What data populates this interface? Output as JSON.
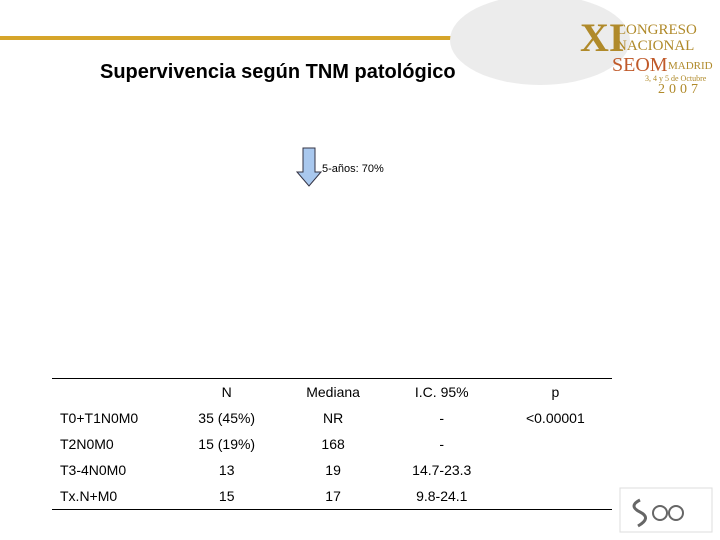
{
  "header": {
    "title": "Supervivencia según TNM patológico"
  },
  "logo": {
    "numeral": "XI",
    "line1": "CONGRESO",
    "line2": "NACIONAL",
    "org": "SEOM",
    "city": "MADRID",
    "dates": "3, 4 y 5 de Octubre",
    "year": "2007"
  },
  "annotation": "5-años: 70%",
  "table": {
    "columns": [
      "",
      "N",
      "Mediana",
      "I.C. 95%",
      "p"
    ],
    "rows": [
      [
        "T0+T1N0M0",
        "35 (45%)",
        "NR",
        "-",
        "<0.00001"
      ],
      [
        "T2N0M0",
        "15 (19%)",
        "168",
        "-",
        ""
      ],
      [
        "T3-4N0M0",
        "13",
        "19",
        "14.7-23.3",
        ""
      ],
      [
        "Tx.N+M0",
        "15",
        "17",
        "9.8-24.1",
        ""
      ]
    ]
  }
}
